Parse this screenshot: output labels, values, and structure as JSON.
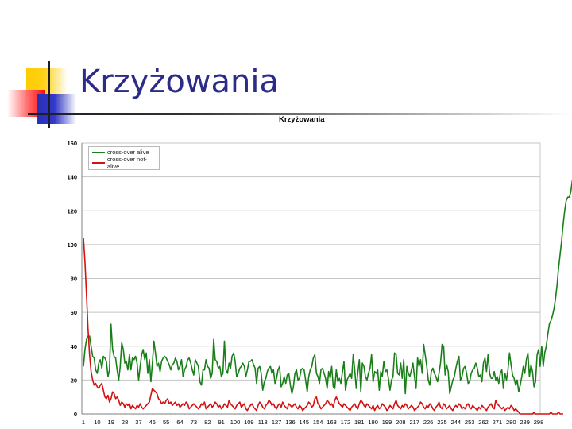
{
  "slide": {
    "title": "Krzyżowania"
  },
  "chart_data": {
    "type": "line",
    "title": "Krzyżowania",
    "xlabel": "",
    "ylabel": "",
    "ylim": [
      0,
      160
    ],
    "yticks": [
      0,
      20,
      40,
      60,
      80,
      100,
      120,
      140,
      160
    ],
    "grid": true,
    "legend_position": "top-left inside",
    "x_start": 1,
    "x_end": 298,
    "x_tick_labels": [
      "1",
      "10",
      "19",
      "28",
      "37",
      "46",
      "55",
      "64",
      "73",
      "82",
      "91",
      "100",
      "109",
      "118",
      "127",
      "136",
      "145",
      "154",
      "163",
      "172",
      "181",
      "190",
      "199",
      "208",
      "217",
      "226",
      "235",
      "244",
      "253",
      "262",
      "271",
      "280",
      "289",
      "298"
    ],
    "series": [
      {
        "name": "cross-over alive",
        "color": "#1a7f1a",
        "values": [
          28,
          38,
          44,
          46,
          46,
          40,
          34,
          33,
          26,
          24,
          30,
          32,
          27,
          34,
          33,
          31,
          22,
          26,
          53,
          38,
          34,
          33,
          26,
          20,
          28,
          42,
          38,
          30,
          31,
          26,
          35,
          26,
          33,
          32,
          34,
          30,
          20,
          28,
          35,
          38,
          32,
          36,
          24,
          32,
          19,
          30,
          43,
          36,
          28,
          30,
          25,
          31,
          33,
          34,
          33,
          31,
          29,
          26,
          29,
          30,
          33,
          31,
          26,
          28,
          32,
          22,
          26,
          28,
          32,
          33,
          30,
          26,
          23,
          32,
          30,
          28,
          19,
          17,
          26,
          26,
          32,
          28,
          27,
          21,
          24,
          44,
          32,
          31,
          27,
          28,
          22,
          24,
          43,
          26,
          24,
          30,
          27,
          34,
          36,
          31,
          22,
          24,
          27,
          28,
          30,
          28,
          22,
          26,
          31,
          31,
          32,
          29,
          27,
          18,
          27,
          28,
          24,
          14,
          19,
          21,
          25,
          27,
          28,
          24,
          26,
          18,
          21,
          26,
          28,
          16,
          18,
          22,
          18,
          23,
          24,
          17,
          12,
          16,
          24,
          26,
          20,
          21,
          26,
          27,
          26,
          20,
          13,
          22,
          26,
          28,
          33,
          35,
          24,
          22,
          18,
          26,
          27,
          24,
          21,
          15,
          25,
          21,
          28,
          16,
          15,
          26,
          19,
          21,
          18,
          25,
          31,
          14,
          20,
          22,
          24,
          21,
          35,
          26,
          15,
          24,
          32,
          13,
          30,
          28,
          22,
          20,
          24,
          27,
          35,
          19,
          25,
          24,
          26,
          14,
          25,
          22,
          31,
          25,
          26,
          21,
          14,
          20,
          22,
          36,
          35,
          24,
          23,
          30,
          21,
          32,
          12,
          28,
          24,
          22,
          26,
          30,
          22,
          15,
          33,
          28,
          32,
          24,
          41,
          35,
          28,
          20,
          17,
          25,
          27,
          24,
          22,
          19,
          24,
          30,
          41,
          40,
          23,
          29,
          25,
          12,
          16,
          20,
          22,
          27,
          31,
          34,
          20,
          22,
          27,
          28,
          24,
          18,
          19,
          24,
          26,
          27,
          30,
          27,
          22,
          23,
          19,
          30,
          33,
          25,
          35,
          24,
          21,
          21,
          25,
          20,
          22,
          18,
          24,
          26,
          15,
          24,
          20,
          26,
          36,
          29,
          23,
          21,
          17,
          20,
          13,
          17,
          22,
          28,
          24,
          32,
          36,
          22,
          29,
          25,
          16,
          19,
          35,
          38,
          28,
          40,
          28,
          36,
          40,
          47,
          53,
          55,
          58,
          62,
          68,
          76,
          86,
          94,
          102,
          112,
          120,
          126,
          128,
          128,
          131,
          138,
          136,
          130,
          134,
          139,
          137,
          129,
          135,
          138,
          131,
          133,
          137,
          140,
          135,
          137,
          144,
          138,
          134,
          138,
          140
        ]
      },
      {
        "name": "cross-over not-alive",
        "color": "#d41010",
        "values": [
          104,
          90,
          70,
          50,
          35,
          25,
          20,
          17,
          18,
          16,
          15,
          17,
          18,
          14,
          10,
          9,
          11,
          7,
          9,
          13,
          12,
          9,
          10,
          8,
          5,
          7,
          6,
          4,
          6,
          5,
          6,
          3,
          5,
          4,
          3,
          5,
          4,
          6,
          4,
          3,
          4,
          5,
          6,
          7,
          11,
          15,
          14,
          13,
          12,
          9,
          8,
          6,
          7,
          6,
          8,
          9,
          6,
          7,
          5,
          6,
          7,
          5,
          6,
          4,
          5,
          6,
          5,
          7,
          6,
          3,
          4,
          5,
          6,
          5,
          4,
          3,
          4,
          6,
          5,
          7,
          3,
          4,
          5,
          6,
          4,
          5,
          7,
          6,
          4,
          5,
          3,
          4,
          6,
          5,
          4,
          8,
          6,
          5,
          4,
          3,
          5,
          6,
          7,
          4,
          5,
          6,
          3,
          2,
          4,
          5,
          6,
          4,
          3,
          2,
          5,
          7,
          6,
          4,
          3,
          5,
          6,
          8,
          7,
          5,
          6,
          4,
          3,
          5,
          6,
          4,
          7,
          5,
          4,
          3,
          6,
          5,
          4,
          5,
          6,
          4,
          3,
          5,
          4,
          2,
          3,
          4,
          5,
          7,
          6,
          4,
          5,
          9,
          10,
          6,
          5,
          3,
          4,
          5,
          6,
          8,
          7,
          5,
          6,
          4,
          8,
          10,
          8,
          6,
          5,
          4,
          6,
          5,
          4,
          3,
          2,
          4,
          5,
          6,
          4,
          3,
          6,
          8,
          7,
          5,
          4,
          6,
          5,
          4,
          3,
          5,
          2,
          4,
          5,
          3,
          4,
          6,
          5,
          4,
          2,
          3,
          5,
          4,
          3,
          6,
          8,
          5,
          4,
          3,
          5,
          4,
          6,
          5,
          3,
          4,
          5,
          4,
          2,
          3,
          4,
          5,
          7,
          6,
          4,
          3,
          5,
          4,
          6,
          5,
          3,
          2,
          4,
          5,
          7,
          4,
          3,
          6,
          5,
          3,
          4,
          5,
          3,
          2,
          4,
          5,
          4,
          6,
          5,
          3,
          4,
          3,
          5,
          6,
          4,
          3,
          5,
          4,
          3,
          2,
          4,
          3,
          5,
          4,
          3,
          2,
          4,
          5,
          6,
          4,
          3,
          8,
          6,
          5,
          4,
          3,
          4,
          2,
          3,
          4,
          3,
          5,
          4,
          2,
          3,
          2,
          1,
          0,
          0,
          0,
          0,
          0,
          0,
          0,
          0,
          0,
          1,
          0,
          0,
          0,
          0,
          0,
          0,
          0,
          0,
          0,
          0,
          1,
          0,
          0,
          0,
          0,
          1,
          0,
          0,
          0
        ]
      }
    ]
  }
}
